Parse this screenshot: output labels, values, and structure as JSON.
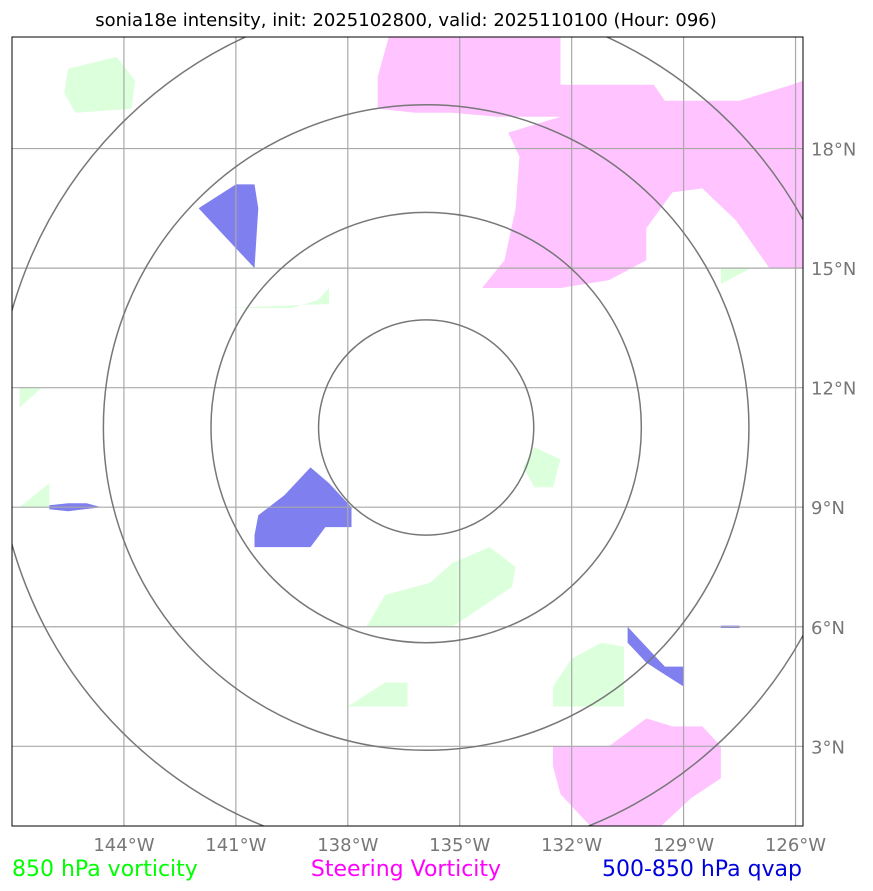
{
  "title": "sonia18e intensity, init: 2025102800, valid: 2025110100 (Hour: 096)",
  "map": {
    "lon_range": [
      -147,
      -125.8
    ],
    "lat_range": [
      1.0,
      20.8
    ],
    "center": {
      "lon": -135.9,
      "lat": 11.0
    },
    "ring_radii_deg": [
      2.7,
      5.4,
      8.1,
      10.8
    ],
    "lon_ticks": [
      {
        "value": -144,
        "label": "144°W"
      },
      {
        "value": -141,
        "label": "141°W"
      },
      {
        "value": -138,
        "label": "138°W"
      },
      {
        "value": -135,
        "label": "135°W"
      },
      {
        "value": -132,
        "label": "132°W"
      },
      {
        "value": -129,
        "label": "129°W"
      },
      {
        "value": -126,
        "label": "126°W"
      }
    ],
    "lat_ticks": [
      {
        "value": 3,
        "label": "3°N"
      },
      {
        "value": 6,
        "label": "6°N"
      },
      {
        "value": 9,
        "label": "9°N"
      },
      {
        "value": 12,
        "label": "12°N"
      },
      {
        "value": 15,
        "label": "15°N"
      },
      {
        "value": 18,
        "label": "18°N"
      }
    ],
    "gridline_color": "#a9a9a9",
    "ring_color": "#777777"
  },
  "layers": {
    "vorticity_850": {
      "label": "850 hPa vorticity",
      "label_color": "#00ff00",
      "fill": "#dcffdc",
      "regions": [
        [
          [
            -145.5,
            20.0
          ],
          [
            -144.2,
            20.3
          ],
          [
            -143.7,
            19.7
          ],
          [
            -143.8,
            19.0
          ],
          [
            -145.3,
            18.9
          ],
          [
            -145.6,
            19.4
          ]
        ],
        [
          [
            -146.8,
            12.0
          ],
          [
            -146.2,
            12.0
          ],
          [
            -146.8,
            11.5
          ]
        ],
        [
          [
            -146.8,
            9.0
          ],
          [
            -146.0,
            9.6
          ],
          [
            -146.0,
            9.0
          ]
        ],
        [
          [
            -141.3,
            14.0
          ],
          [
            -138.5,
            14.1
          ],
          [
            -138.5,
            14.5
          ],
          [
            -138.8,
            14.2
          ],
          [
            -139.5,
            14.0
          ]
        ],
        [
          [
            -133.0,
            10.5
          ],
          [
            -132.3,
            10.2
          ],
          [
            -132.5,
            9.5
          ],
          [
            -133.0,
            9.5
          ],
          [
            -133.3,
            10.0
          ]
        ],
        [
          [
            -137.5,
            6.0
          ],
          [
            -135.2,
            6.0
          ],
          [
            -133.6,
            7.0
          ],
          [
            -133.5,
            7.5
          ],
          [
            -134.2,
            8.0
          ],
          [
            -135.2,
            7.6
          ],
          [
            -135.8,
            7.1
          ],
          [
            -137.0,
            6.8
          ]
        ],
        [
          [
            -138.0,
            4.0
          ],
          [
            -136.4,
            4.0
          ],
          [
            -136.4,
            4.6
          ],
          [
            -137.0,
            4.6
          ]
        ],
        [
          [
            -132.5,
            4.0
          ],
          [
            -130.6,
            4.0
          ],
          [
            -130.6,
            5.5
          ],
          [
            -131.2,
            5.6
          ],
          [
            -132.0,
            5.2
          ],
          [
            -132.5,
            4.5
          ]
        ],
        [
          [
            -128.0,
            15.0
          ],
          [
            -127.2,
            15.0
          ],
          [
            -128.0,
            14.6
          ]
        ]
      ]
    },
    "steering_vorticity": {
      "label": "Steering Vorticity",
      "label_color": "#ff00ff",
      "fill": "#ffc0ff",
      "regions": [
        [
          [
            -136.9,
            20.8
          ],
          [
            -132.3,
            20.8
          ],
          [
            -132.3,
            19.6
          ],
          [
            -129.8,
            19.6
          ],
          [
            -129.5,
            19.2
          ],
          [
            -127.5,
            19.2
          ],
          [
            -126.1,
            19.6
          ],
          [
            -125.8,
            19.7
          ],
          [
            -125.8,
            15.0
          ],
          [
            -126.7,
            15.0
          ],
          [
            -127.6,
            16.2
          ],
          [
            -128.5,
            17.0
          ],
          [
            -129.3,
            16.9
          ],
          [
            -130.0,
            16.0
          ],
          [
            -130.0,
            15.2
          ],
          [
            -131.0,
            14.7
          ],
          [
            -132.3,
            14.5
          ],
          [
            -134.4,
            14.5
          ],
          [
            -133.8,
            15.2
          ],
          [
            -133.5,
            16.5
          ],
          [
            -133.4,
            17.8
          ],
          [
            -133.7,
            18.4
          ],
          [
            -132.3,
            18.8
          ],
          [
            -134.0,
            18.8
          ],
          [
            -135.2,
            18.9
          ],
          [
            -136.2,
            18.9
          ],
          [
            -137.2,
            19.0
          ],
          [
            -137.2,
            19.8
          ]
        ],
        [
          [
            -132.5,
            3.0
          ],
          [
            -131.0,
            3.0
          ],
          [
            -130.0,
            3.7
          ],
          [
            -129.3,
            3.5
          ],
          [
            -128.5,
            3.5
          ],
          [
            -128.0,
            3.0
          ],
          [
            -128.0,
            2.2
          ],
          [
            -128.8,
            1.7
          ],
          [
            -129.6,
            1.0
          ],
          [
            -131.5,
            1.0
          ],
          [
            -132.3,
            1.8
          ],
          [
            -132.5,
            2.5
          ]
        ]
      ]
    },
    "qvap_500_850": {
      "label": "500-850 hPa qvap",
      "label_color": "#0000dd",
      "fill": "#7f7ff0",
      "regions": [
        [
          [
            -142.0,
            16.5
          ],
          [
            -141.0,
            17.1
          ],
          [
            -140.5,
            17.1
          ],
          [
            -140.4,
            16.5
          ],
          [
            -140.5,
            15.0
          ],
          [
            -141.0,
            15.5
          ]
        ],
        [
          [
            -140.5,
            8.0
          ],
          [
            -139.0,
            8.0
          ],
          [
            -138.6,
            8.5
          ],
          [
            -137.9,
            8.5
          ],
          [
            -137.9,
            9.0
          ],
          [
            -138.5,
            9.6
          ],
          [
            -139.0,
            10.0
          ],
          [
            -139.7,
            9.3
          ],
          [
            -140.4,
            8.8
          ],
          [
            -140.5,
            8.3
          ]
        ],
        [
          [
            -146.0,
            9.05
          ],
          [
            -145.5,
            9.1
          ],
          [
            -145.0,
            9.1
          ],
          [
            -144.6,
            9.0
          ],
          [
            -145.5,
            8.9
          ],
          [
            -146.0,
            8.95
          ]
        ],
        [
          [
            -130.5,
            6.0
          ],
          [
            -129.5,
            5.0
          ],
          [
            -129.0,
            5.0
          ],
          [
            -129.0,
            4.5
          ],
          [
            -129.5,
            4.8
          ],
          [
            -130.0,
            5.1
          ],
          [
            -130.5,
            5.6
          ]
        ],
        [
          [
            -128.0,
            6.03
          ],
          [
            -127.5,
            6.03
          ],
          [
            -127.5,
            5.97
          ],
          [
            -128.0,
            5.97
          ]
        ]
      ]
    }
  }
}
